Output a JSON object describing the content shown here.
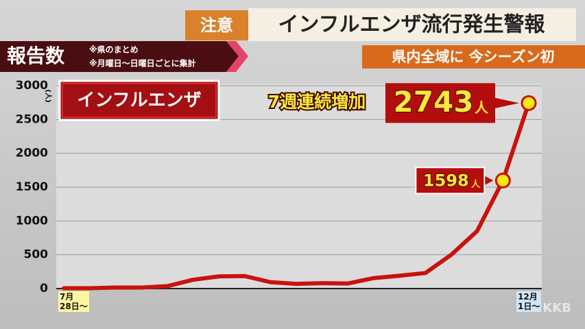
{
  "header": {
    "badge": "注意",
    "headline": "インフルエンザ流行発生警報",
    "section": "報告数",
    "notes": [
      "※県のまとめ",
      "※月曜日～日曜日ごとに集計"
    ],
    "banner": "県内全域に 今シーズン初",
    "watermark": "KKB"
  },
  "chart_data": {
    "type": "line",
    "title": "インフルエンザ",
    "annotation": "7週連続増加",
    "unit_label": "人",
    "y_label": "(人)",
    "categories": [
      "7月\n28日～",
      null,
      null,
      null,
      null,
      null,
      null,
      null,
      null,
      null,
      null,
      null,
      null,
      null,
      null,
      null,
      null,
      null,
      "12月\n1日～"
    ],
    "values": [
      5,
      5,
      15,
      15,
      35,
      130,
      180,
      185,
      95,
      70,
      80,
      75,
      155,
      190,
      230,
      500,
      850,
      1598,
      2743
    ],
    "labeled_points": [
      17,
      18
    ],
    "color": "#c8130c",
    "ylim": [
      0,
      3000
    ],
    "yticks": [
      0,
      500,
      1000,
      1500,
      2000,
      2500,
      3000
    ],
    "grid": true
  }
}
